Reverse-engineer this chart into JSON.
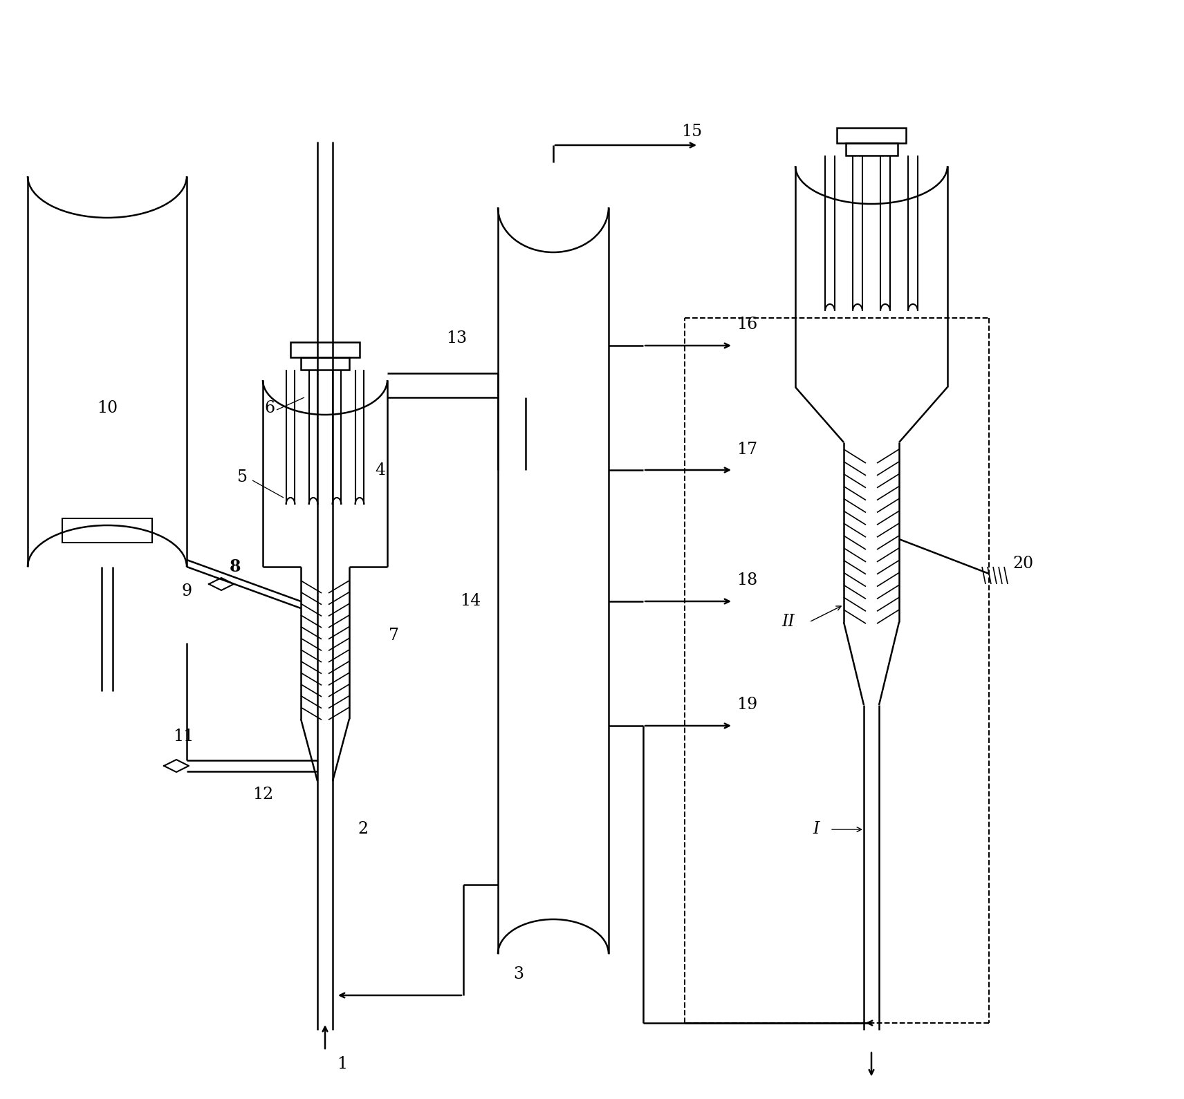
{
  "bg_color": "#ffffff",
  "line_color": "#000000",
  "lw": 1.8,
  "lw_thin": 1.2,
  "fig_width": 17.12,
  "fig_height": 15.9
}
